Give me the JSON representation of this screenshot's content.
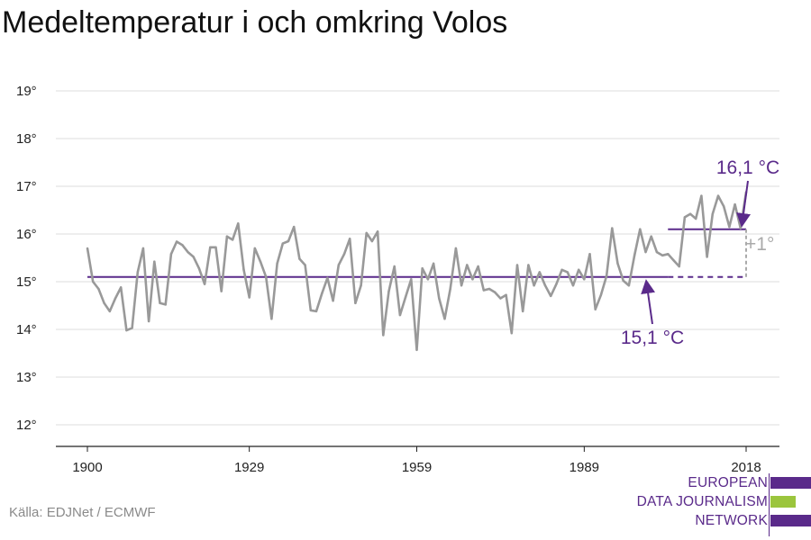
{
  "chart_data": {
    "type": "line",
    "title": "Medeltemperatur i och omkring Volos",
    "xlabel": "",
    "ylabel": "",
    "xlim": [
      1900,
      2018
    ],
    "ylim": [
      12,
      19
    ],
    "x_ticks": [
      1900,
      1929,
      1959,
      1989,
      2018
    ],
    "y_ticks": [
      {
        "value": 12,
        "label": "12°"
      },
      {
        "value": 13,
        "label": "13°"
      },
      {
        "value": 14,
        "label": "14°"
      },
      {
        "value": 15,
        "label": "15°"
      },
      {
        "value": 16,
        "label": "16°"
      },
      {
        "value": 17,
        "label": "17°"
      },
      {
        "value": 18,
        "label": "18°"
      },
      {
        "value": 19,
        "label": "19°"
      }
    ],
    "grid": true,
    "series": [
      {
        "color": "#999999",
        "x": [
          1900,
          1901,
          1902,
          1903,
          1904,
          1905,
          1906,
          1907,
          1908,
          1909,
          1910,
          1911,
          1912,
          1913,
          1914,
          1915,
          1916,
          1917,
          1918,
          1919,
          1920,
          1921,
          1922,
          1923,
          1924,
          1925,
          1926,
          1927,
          1928,
          1929,
          1930,
          1931,
          1932,
          1933,
          1934,
          1935,
          1936,
          1937,
          1938,
          1939,
          1940,
          1941,
          1942,
          1943,
          1944,
          1945,
          1946,
          1947,
          1948,
          1949,
          1950,
          1951,
          1952,
          1953,
          1954,
          1955,
          1956,
          1957,
          1958,
          1959,
          1960,
          1961,
          1962,
          1963,
          1964,
          1965,
          1966,
          1967,
          1968,
          1969,
          1970,
          1971,
          1972,
          1973,
          1974,
          1975,
          1976,
          1977,
          1978,
          1979,
          1980,
          1981,
          1982,
          1983,
          1984,
          1985,
          1986,
          1987,
          1988,
          1989,
          1990,
          1991,
          1992,
          1993,
          1994,
          1995,
          1996,
          1997,
          1998,
          1999,
          2000,
          2001,
          2002,
          2003,
          2004,
          2005,
          2006,
          2007,
          2008,
          2009,
          2010,
          2011,
          2012,
          2013,
          2014,
          2015,
          2016,
          2017,
          2018
        ],
        "values": [
          15.7,
          15.0,
          14.85,
          14.55,
          14.38,
          14.65,
          14.88,
          13.98,
          14.03,
          15.2,
          15.7,
          14.17,
          15.42,
          14.55,
          14.52,
          15.58,
          15.84,
          15.77,
          15.62,
          15.52,
          15.28,
          14.95,
          15.72,
          15.72,
          14.8,
          15.95,
          15.88,
          16.22,
          15.25,
          14.67,
          15.7,
          15.42,
          15.1,
          14.22,
          15.38,
          15.8,
          15.85,
          16.15,
          15.48,
          15.35,
          14.4,
          14.38,
          14.75,
          15.08,
          14.6,
          15.35,
          15.58,
          15.9,
          14.55,
          14.92,
          16.02,
          15.85,
          16.05,
          13.88,
          14.8,
          15.32,
          14.3,
          14.68,
          15.05,
          13.57,
          15.28,
          15.05,
          15.38,
          14.65,
          14.22,
          14.85,
          15.7,
          14.92,
          15.35,
          15.05,
          15.32,
          14.82,
          14.85,
          14.78,
          14.65,
          14.72,
          13.92,
          15.35,
          14.38,
          15.35,
          14.92,
          15.2,
          14.92,
          14.7,
          14.95,
          15.25,
          15.2,
          14.92,
          15.25,
          15.05,
          15.58,
          14.42,
          14.72,
          15.12,
          16.12,
          15.38,
          15.02,
          14.92,
          15.55,
          16.1,
          15.62,
          15.95,
          15.62,
          15.55,
          15.58,
          15.45,
          15.32,
          16.35,
          16.42,
          16.32,
          16.8,
          15.52,
          16.42,
          16.8,
          16.58,
          16.15,
          16.62,
          16.12,
          16.88
        ]
      }
    ],
    "reference_lines": [
      {
        "value": 15.1,
        "from": 1900,
        "to": 2018,
        "solid_to": 2004,
        "color": "#5a2a8a",
        "style": "solid-then-dashed"
      },
      {
        "value": 16.1,
        "from": 2004,
        "to": 2018,
        "color": "#5a2a8a",
        "style": "solid"
      }
    ],
    "annotations": {
      "high": "16,1 °C",
      "low": "15,1 °C",
      "diff": "+1°"
    }
  },
  "colors": {
    "line": "#999999",
    "accent": "#5a2a8a",
    "green": "#9bc53d",
    "grid": "#dddddd"
  },
  "footer": {
    "source": "Källa: EDJNet / ECMWF"
  },
  "logo": {
    "line1": "EUROPEAN",
    "line2": "DATA JOURNALISM",
    "line3": "NETWORK"
  }
}
